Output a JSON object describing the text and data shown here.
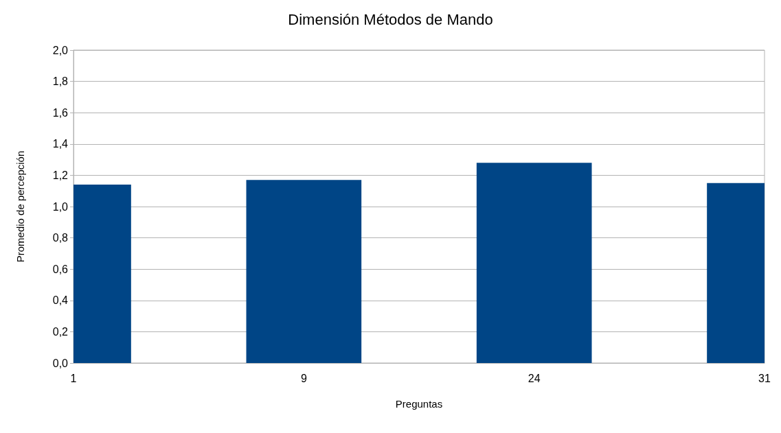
{
  "chart_data": {
    "type": "bar",
    "title": "Dimensión Métodos de Mando",
    "xlabel": "Preguntas",
    "ylabel": "Promedio de percepción",
    "categories": [
      "1",
      "9",
      "24",
      "31"
    ],
    "values": [
      1.14,
      1.17,
      1.28,
      1.15
    ],
    "color": "#004586",
    "ylim": [
      0,
      2
    ],
    "yticks": [
      {
        "value": 0,
        "label": "0,0"
      },
      {
        "value": 0.2,
        "label": "0,2"
      },
      {
        "value": 0.4,
        "label": "0,4"
      },
      {
        "value": 0.6,
        "label": "0,6"
      },
      {
        "value": 0.8,
        "label": "0,8"
      },
      {
        "value": 1,
        "label": "1,0"
      },
      {
        "value": 1.2,
        "label": "1,2"
      },
      {
        "value": 1.4,
        "label": "1,4"
      },
      {
        "value": 1.6,
        "label": "1,6"
      },
      {
        "value": 1.8,
        "label": "1,8"
      },
      {
        "value": 2,
        "label": "2,0"
      }
    ],
    "grid": "y"
  }
}
